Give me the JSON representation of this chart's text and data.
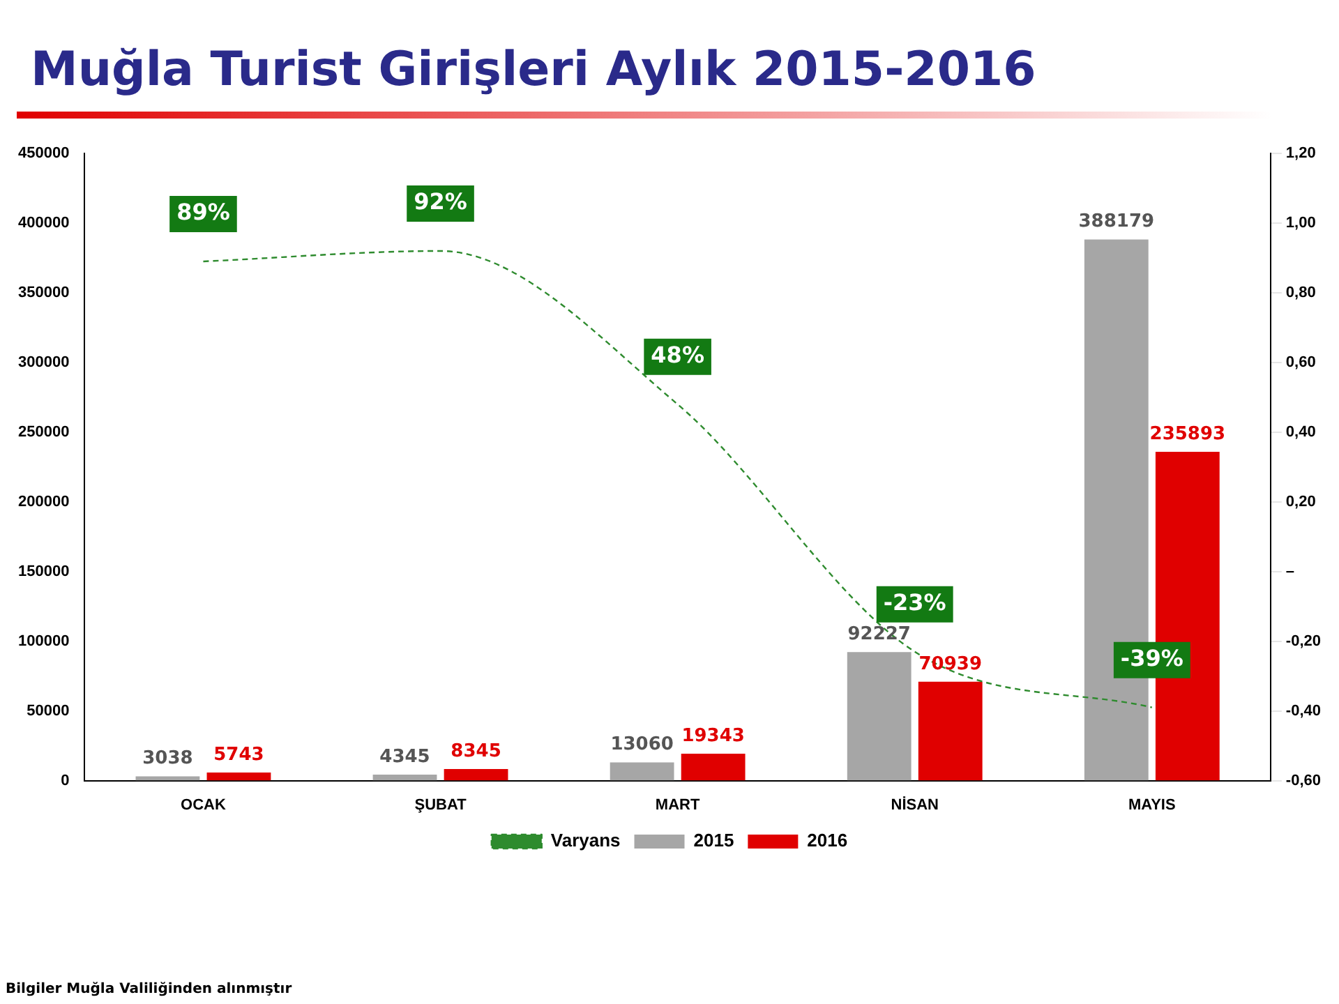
{
  "chart_data": {
    "type": "bar",
    "title": "Muğla Turist Girişleri Aylık 2015-2016",
    "categories": [
      "OCAK",
      "ŞUBAT",
      "MART",
      "NİSAN",
      "MAYIS"
    ],
    "series": [
      {
        "name": "2015",
        "color": "#a6a6a6",
        "values": [
          3038,
          4345,
          13060,
          92227,
          388179
        ],
        "value_labels": [
          "3038",
          "4345",
          "13060",
          "92227",
          "388179"
        ]
      },
      {
        "name": "2016",
        "color": "#e00000",
        "values": [
          5743,
          8345,
          19343,
          70939,
          235893
        ],
        "value_labels": [
          "5743",
          "8345",
          "19343",
          "70939",
          "235893"
        ]
      },
      {
        "name": "Varyans",
        "type": "line",
        "axis": "y2",
        "color": "#2e8b2e",
        "line_style": "dashed",
        "marker": "none",
        "values": [
          0.89,
          0.92,
          0.48,
          -0.23,
          -0.39
        ],
        "value_labels": [
          "89%",
          "92%",
          "48%",
          "-23%",
          "-39%"
        ]
      }
    ],
    "ylim": [
      0,
      450000
    ],
    "yticks": [
      0,
      50000,
      100000,
      150000,
      200000,
      250000,
      300000,
      350000,
      400000,
      450000
    ],
    "y2lim": [
      -0.6,
      1.2
    ],
    "y2ticks": [
      {
        "value": -0.6,
        "label": "-0,60"
      },
      {
        "value": -0.4,
        "label": "-0,40"
      },
      {
        "value": -0.2,
        "label": "-0,20"
      },
      {
        "value": 0,
        "label": "–"
      },
      {
        "value": 0.2,
        "label": "0,20"
      },
      {
        "value": 0.4,
        "label": "0,40"
      },
      {
        "value": 0.6,
        "label": "0,60"
      },
      {
        "value": 0.8,
        "label": "0,80"
      },
      {
        "value": 1.0,
        "label": "1,00"
      },
      {
        "value": 1.2,
        "label": "1,20"
      }
    ],
    "grid": false,
    "legend": "bottom",
    "annotations": [
      "Bilgiler Muğla Valiliğinden alınmıştır"
    ]
  }
}
